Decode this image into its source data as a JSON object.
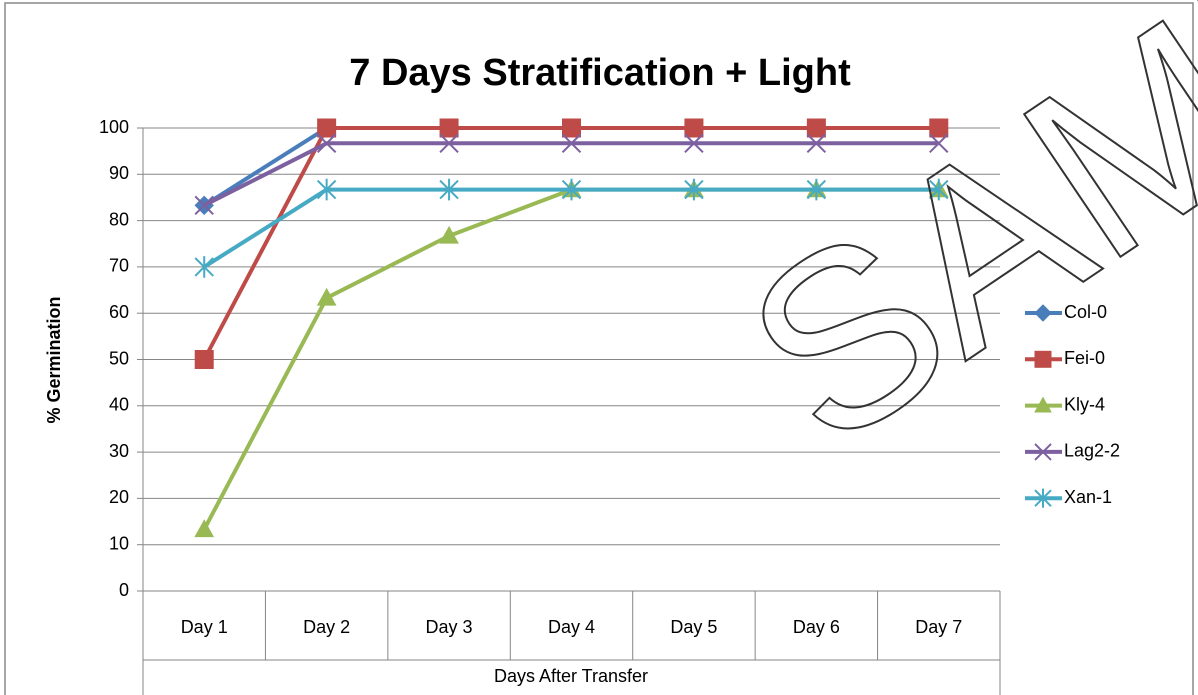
{
  "chart_data": {
    "type": "line",
    "title": "7 Days Stratification + Light",
    "x_label": "Days After Transfer",
    "y_label": "% Germination",
    "watermark": "SAMPLE",
    "categories": [
      "Day 1",
      "Day 2",
      "Day 3",
      "Day 4",
      "Day 5",
      "Day 6",
      "Day 7"
    ],
    "series": [
      {
        "name": "Col-0",
        "color": "#4a7ebb",
        "marker": "diamond",
        "values": [
          83.3,
          100,
          100,
          100,
          100,
          100,
          100
        ]
      },
      {
        "name": "Fei-0",
        "color": "#be4b48",
        "marker": "square",
        "values": [
          50,
          100,
          100,
          100,
          100,
          100,
          100
        ]
      },
      {
        "name": "Kly-4",
        "color": "#98b954",
        "marker": "triangle",
        "values": [
          13.3,
          63.3,
          76.7,
          86.7,
          86.7,
          86.7,
          86.7
        ]
      },
      {
        "name": "Lag2-2",
        "color": "#7d60a0",
        "marker": "x",
        "values": [
          83.3,
          96.7,
          96.7,
          96.7,
          96.7,
          96.7,
          96.7
        ]
      },
      {
        "name": "Xan-1",
        "color": "#46aac5",
        "marker": "star",
        "values": [
          70,
          86.7,
          86.7,
          86.7,
          86.7,
          86.7,
          86.7
        ]
      }
    ],
    "ylim": [
      0,
      100
    ],
    "yticks": [
      0,
      10,
      20,
      30,
      40,
      50,
      60,
      70,
      80,
      90,
      100
    ],
    "grid": true,
    "legend": "right"
  }
}
